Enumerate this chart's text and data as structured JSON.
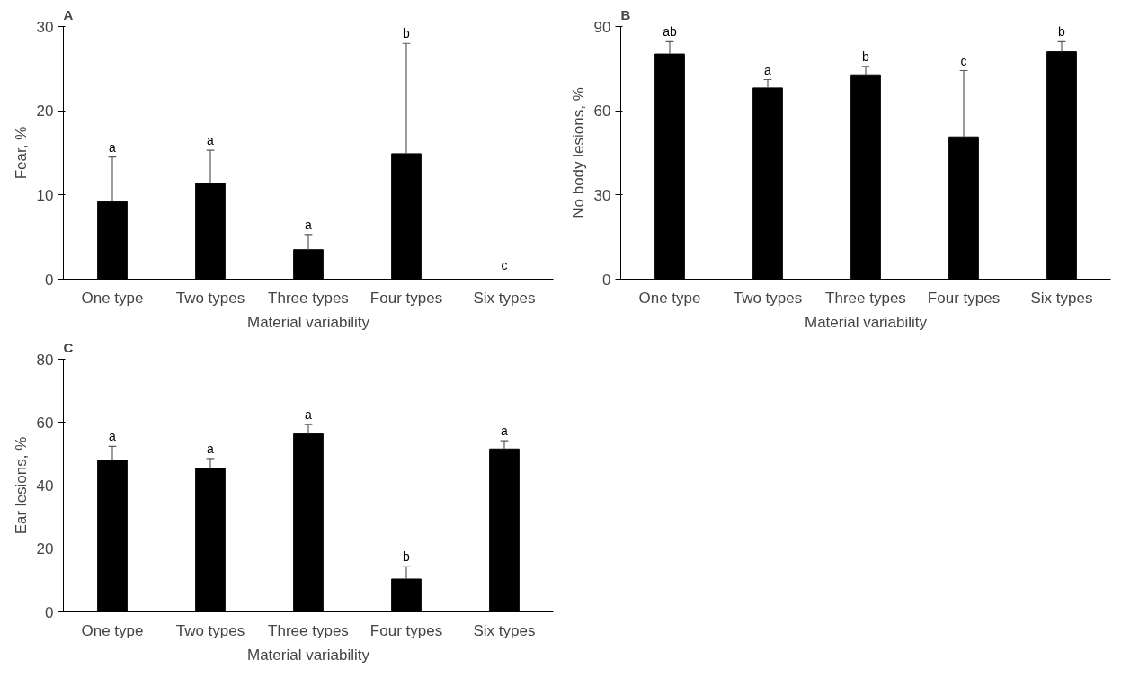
{
  "chart_data": [
    {
      "type": "bar",
      "title": "A",
      "xlabel": "Material variability",
      "ylabel": "Fear, %",
      "categories": [
        "One type",
        "Two types",
        "Three types",
        "Four types",
        "Six types"
      ],
      "values": [
        9.2,
        11.4,
        3.5,
        14.9,
        0
      ],
      "color": "#000000",
      "errors": [
        [
          9.2,
          14.5
        ],
        [
          11.4,
          15.3
        ],
        [
          3.5,
          5.3
        ],
        [
          14.9,
          28.0
        ],
        null
      ],
      "ylim": [
        0,
        30
      ],
      "yticks": [
        0,
        10,
        20,
        30
      ],
      "grid": false,
      "annotations": [
        {
          "text": "a",
          "x": "One type",
          "y": 14.5
        },
        {
          "text": "a",
          "x": "Two types",
          "y": 15.3
        },
        {
          "text": "a",
          "x": "Three types",
          "y": 5.3
        },
        {
          "text": "b",
          "x": "Four types",
          "y": 28.0
        },
        {
          "text": "c",
          "x": "Six types",
          "y": 0.5
        }
      ]
    },
    {
      "type": "bar",
      "title": "B",
      "xlabel": "Material variability",
      "ylabel": "No body lesions, %",
      "categories": [
        "One type",
        "Two types",
        "Three types",
        "Four types",
        "Six types"
      ],
      "values": [
        80.2,
        68.1,
        72.8,
        50.7,
        81.0
      ],
      "color": "#000000",
      "errors": [
        [
          80.2,
          84.6
        ],
        [
          68.1,
          71.1
        ],
        [
          72.8,
          75.8
        ],
        [
          50.7,
          74.3
        ],
        [
          81.0,
          84.6
        ]
      ],
      "ylim": [
        0,
        90
      ],
      "yticks": [
        0,
        30,
        60,
        90
      ],
      "grid": false,
      "annotations": [
        {
          "text": "ab",
          "x": "One type",
          "y": 84.6
        },
        {
          "text": "a",
          "x": "Two types",
          "y": 71.1
        },
        {
          "text": "b",
          "x": "Three types",
          "y": 75.8
        },
        {
          "text": "c",
          "x": "Four types",
          "y": 74.3
        },
        {
          "text": "b",
          "x": "Six types",
          "y": 84.6
        }
      ]
    },
    {
      "type": "bar",
      "title": "C",
      "xlabel": "Material variability",
      "ylabel": "Ear lesions, %",
      "categories": [
        "One type",
        "Two types",
        "Three types",
        "Four types",
        "Six types"
      ],
      "values": [
        48.1,
        45.4,
        56.4,
        10.4,
        51.6
      ],
      "color": "#000000",
      "errors": [
        [
          48.1,
          52.4
        ],
        [
          45.4,
          48.6
        ],
        [
          56.4,
          59.3
        ],
        [
          10.4,
          14.3
        ],
        [
          51.6,
          54.2
        ]
      ],
      "ylim": [
        0,
        80
      ],
      "yticks": [
        0,
        20,
        40,
        60,
        80
      ],
      "grid": false,
      "annotations": [
        {
          "text": "a",
          "x": "One type",
          "y": 52.4
        },
        {
          "text": "a",
          "x": "Two types",
          "y": 48.6
        },
        {
          "text": "a",
          "x": "Three types",
          "y": 59.3
        },
        {
          "text": "b",
          "x": "Four types",
          "y": 14.3
        },
        {
          "text": "a",
          "x": "Six types",
          "y": 54.2
        }
      ]
    }
  ]
}
